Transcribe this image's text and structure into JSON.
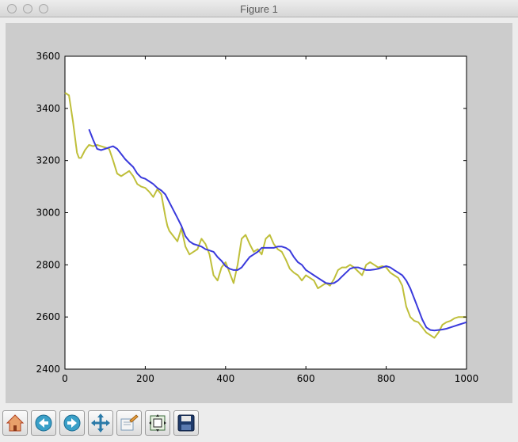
{
  "window": {
    "title": "Figure 1"
  },
  "toolbar": {
    "buttons": [
      {
        "name": "home-button",
        "icon": "home-icon"
      },
      {
        "name": "back-button",
        "icon": "back-arrow-icon"
      },
      {
        "name": "forward-button",
        "icon": "forward-arrow-icon"
      },
      {
        "name": "pan-button",
        "icon": "pan-move-icon"
      },
      {
        "name": "zoom-button",
        "icon": "zoom-rectangle-icon"
      },
      {
        "name": "configure-subplots-button",
        "icon": "subplots-icon"
      },
      {
        "name": "save-button",
        "icon": "save-disk-icon"
      }
    ]
  },
  "colors": {
    "figure_background": "#cccccc",
    "axes_background": "#ffffff",
    "series_raw": "#bfbf3a",
    "series_smooth": "#3a3adc"
  },
  "chart_data": {
    "type": "line",
    "title": "",
    "xlabel": "",
    "ylabel": "",
    "xlim": [
      0,
      1000
    ],
    "ylim": [
      2400,
      3600
    ],
    "xticks": [
      "0",
      "200",
      "400",
      "600",
      "800",
      "1000"
    ],
    "yticks": [
      "2400",
      "2600",
      "2800",
      "3000",
      "3200",
      "3400",
      "3600"
    ],
    "grid": false,
    "legend": "none",
    "series": [
      {
        "color": "#bfbf3a",
        "x": [
          0,
          10,
          20,
          30,
          35,
          40,
          50,
          60,
          70,
          80,
          90,
          100,
          110,
          120,
          130,
          140,
          150,
          160,
          170,
          180,
          190,
          200,
          210,
          220,
          230,
          240,
          250,
          255,
          260,
          270,
          280,
          290,
          300,
          310,
          320,
          330,
          340,
          350,
          360,
          370,
          380,
          390,
          400,
          410,
          420,
          430,
          440,
          450,
          460,
          470,
          480,
          490,
          500,
          510,
          520,
          530,
          540,
          550,
          560,
          570,
          580,
          590,
          600,
          610,
          620,
          630,
          640,
          650,
          660,
          670,
          680,
          690,
          700,
          710,
          720,
          730,
          740,
          750,
          760,
          770,
          780,
          790,
          800,
          810,
          820,
          830,
          840,
          850,
          860,
          870,
          880,
          890,
          900,
          910,
          920,
          930,
          940,
          950,
          960,
          970,
          980,
          990,
          1000
        ],
        "y": [
          3460,
          3450,
          3350,
          3230,
          3210,
          3210,
          3240,
          3260,
          3255,
          3260,
          3255,
          3250,
          3245,
          3200,
          3150,
          3140,
          3150,
          3160,
          3140,
          3110,
          3100,
          3095,
          3080,
          3060,
          3090,
          3070,
          2985,
          2950,
          2930,
          2910,
          2890,
          2940,
          2870,
          2840,
          2850,
          2860,
          2900,
          2880,
          2840,
          2760,
          2740,
          2790,
          2810,
          2770,
          2730,
          2800,
          2900,
          2915,
          2880,
          2850,
          2860,
          2840,
          2900,
          2915,
          2880,
          2860,
          2850,
          2820,
          2785,
          2770,
          2760,
          2740,
          2760,
          2750,
          2740,
          2710,
          2720,
          2730,
          2720,
          2745,
          2780,
          2790,
          2790,
          2800,
          2790,
          2775,
          2760,
          2800,
          2810,
          2800,
          2790,
          2795,
          2790,
          2770,
          2760,
          2750,
          2720,
          2640,
          2600,
          2585,
          2580,
          2560,
          2540,
          2530,
          2520,
          2540,
          2570,
          2580,
          2585,
          2595,
          2600,
          2600,
          2600
        ]
      },
      {
        "color": "#3a3adc",
        "x": [
          60,
          70,
          80,
          90,
          100,
          110,
          120,
          130,
          140,
          150,
          160,
          170,
          180,
          190,
          200,
          210,
          220,
          230,
          240,
          250,
          260,
          270,
          280,
          290,
          300,
          310,
          320,
          330,
          340,
          350,
          360,
          370,
          380,
          390,
          400,
          410,
          420,
          430,
          440,
          450,
          460,
          470,
          480,
          490,
          500,
          510,
          520,
          530,
          540,
          550,
          560,
          570,
          580,
          590,
          600,
          610,
          620,
          630,
          640,
          650,
          660,
          670,
          680,
          690,
          700,
          710,
          720,
          730,
          740,
          750,
          760,
          770,
          780,
          790,
          800,
          810,
          820,
          830,
          840,
          850,
          860,
          870,
          880,
          890,
          900,
          910,
          920,
          930,
          940,
          950,
          960,
          970,
          980,
          990,
          1000
        ],
        "y": [
          3320,
          3280,
          3245,
          3240,
          3245,
          3250,
          3255,
          3245,
          3225,
          3205,
          3190,
          3175,
          3150,
          3135,
          3130,
          3120,
          3110,
          3095,
          3085,
          3070,
          3040,
          3010,
          2980,
          2950,
          2910,
          2890,
          2880,
          2875,
          2870,
          2860,
          2855,
          2850,
          2830,
          2815,
          2795,
          2785,
          2780,
          2780,
          2790,
          2810,
          2830,
          2840,
          2850,
          2865,
          2865,
          2865,
          2865,
          2870,
          2870,
          2865,
          2855,
          2830,
          2810,
          2800,
          2780,
          2770,
          2760,
          2750,
          2740,
          2730,
          2728,
          2730,
          2740,
          2755,
          2770,
          2785,
          2790,
          2790,
          2785,
          2780,
          2780,
          2782,
          2785,
          2790,
          2795,
          2790,
          2780,
          2770,
          2760,
          2740,
          2710,
          2670,
          2630,
          2590,
          2560,
          2550,
          2548,
          2550,
          2552,
          2555,
          2560,
          2565,
          2570,
          2575,
          2580
        ]
      }
    ]
  }
}
